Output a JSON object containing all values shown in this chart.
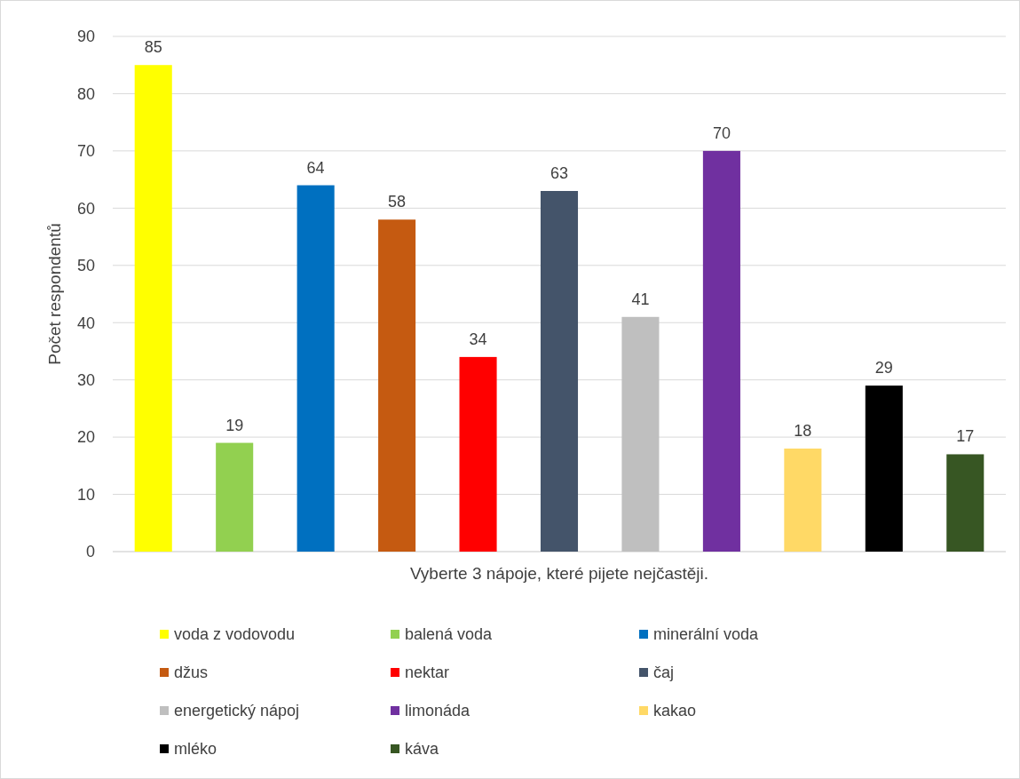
{
  "chart_data": {
    "type": "bar",
    "xlabel": "Vyberte 3 nápoje, které pijete nejčastěji.",
    "ylabel": "Počet respondentů",
    "categories": [
      null
    ],
    "series": [
      {
        "name": "voda z vodovodu",
        "color": "#ffff00",
        "values": [
          85
        ]
      },
      {
        "name": "balená voda",
        "color": "#92d050",
        "values": [
          19
        ]
      },
      {
        "name": "minerální voda",
        "color": "#0070c0",
        "values": [
          64
        ]
      },
      {
        "name": "džus",
        "color": "#c55a11",
        "values": [
          58
        ]
      },
      {
        "name": "nektar",
        "color": "#ff0000",
        "values": [
          34
        ]
      },
      {
        "name": "čaj",
        "color": "#44546a",
        "values": [
          63
        ]
      },
      {
        "name": "energetický nápoj",
        "color": "#bfbfbf",
        "values": [
          41
        ]
      },
      {
        "name": "limonáda",
        "color": "#7030a0",
        "values": [
          70
        ]
      },
      {
        "name": "kakao",
        "color": "#ffd966",
        "values": [
          18
        ]
      },
      {
        "name": "mléko",
        "color": "#000000",
        "values": [
          29
        ]
      },
      {
        "name": "káva",
        "color": "#375623",
        "values": [
          17
        ]
      }
    ],
    "ylim": [
      0,
      90
    ],
    "yticks": [
      0,
      10,
      20,
      30,
      40,
      50,
      60,
      70,
      80,
      90
    ],
    "grid": "y",
    "legend": "bottom",
    "data_labels": true
  }
}
